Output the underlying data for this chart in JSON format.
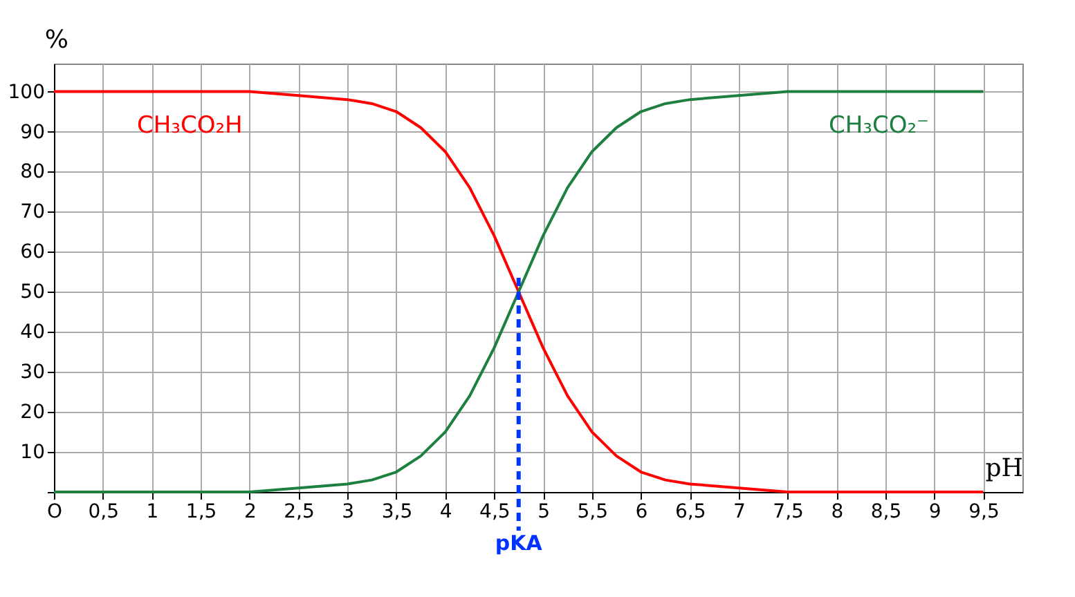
{
  "chart_data": {
    "type": "line",
    "xlabel": "pH",
    "ylabel": "%",
    "x": [
      0,
      1,
      2,
      2.5,
      3,
      3.25,
      3.5,
      3.75,
      4,
      4.25,
      4.5,
      4.75,
      5,
      5.25,
      5.5,
      5.75,
      6,
      6.25,
      6.5,
      7,
      7.5,
      8,
      9,
      9.5
    ],
    "series": [
      {
        "name": "CH₃CO₂H",
        "color": "#ff0000",
        "values": [
          100,
          100,
          100,
          99,
          98,
          97,
          95,
          91,
          85,
          76,
          64,
          50,
          36,
          24,
          15,
          9,
          5,
          3,
          2,
          1,
          0,
          0,
          0,
          0
        ]
      },
      {
        "name": "CH₃CO₂⁻",
        "color": "#1e8040",
        "values": [
          0,
          0,
          0,
          1,
          2,
          3,
          5,
          9,
          15,
          24,
          36,
          50,
          64,
          76,
          85,
          91,
          95,
          97,
          98,
          99,
          100,
          100,
          100,
          100
        ]
      }
    ],
    "xlim": [
      0,
      9.9
    ],
    "ylim": [
      0,
      107
    ],
    "xticks": [
      {
        "value": 0,
        "label": "O"
      },
      {
        "value": 0.5,
        "label": "0,5"
      },
      1,
      {
        "value": 1.5,
        "label": "1,5"
      },
      2,
      {
        "value": 2.5,
        "label": "2,5"
      },
      3,
      {
        "value": 3.5,
        "label": "3,5"
      },
      4,
      {
        "value": 4.5,
        "label": "4,5"
      },
      5,
      {
        "value": 5.5,
        "label": "5,5"
      },
      6,
      {
        "value": 6.5,
        "label": "6,5"
      },
      7,
      {
        "value": 7.5,
        "label": "7,5"
      },
      8,
      {
        "value": 8.5,
        "label": "8,5"
      },
      9,
      {
        "value": 9.5,
        "label": "9,5"
      }
    ],
    "yticks": [
      {
        "value": 0,
        "label": null
      },
      10,
      20,
      30,
      40,
      50,
      60,
      70,
      80,
      90,
      100
    ],
    "ref_lines": [
      {
        "axis": "x",
        "value": 4.75,
        "label": "pKA",
        "color": "#0033ff",
        "line_style": "dashed"
      }
    ],
    "grid": true,
    "legend": false,
    "marker": "none",
    "line_style": "solid"
  }
}
